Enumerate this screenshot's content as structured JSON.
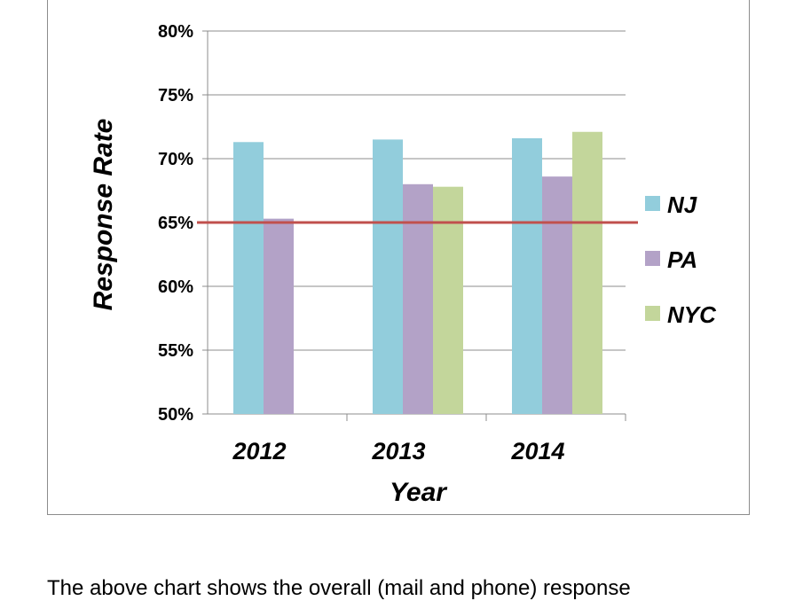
{
  "chart_data": {
    "type": "bar",
    "title": "",
    "xlabel": "Year",
    "ylabel": "Response Rate",
    "categories": [
      "2012",
      "2013",
      "2014"
    ],
    "series": [
      {
        "name": "NJ",
        "color": "#92cddc",
        "values": [
          71.3,
          71.5,
          71.6
        ]
      },
      {
        "name": "PA",
        "color": "#b3a2c7",
        "values": [
          65.3,
          68.0,
          68.6
        ]
      },
      {
        "name": "NYC",
        "color": "#c3d69b",
        "values": [
          null,
          67.8,
          72.1
        ]
      }
    ],
    "ylim": [
      50,
      80
    ],
    "yticks": [
      50,
      55,
      60,
      65,
      70,
      75,
      80
    ],
    "ytick_labels": [
      "50%",
      "55%",
      "60%",
      "65%",
      "70%",
      "75%",
      "80%"
    ],
    "reference_line": {
      "value": 65,
      "color": "#c0504d"
    },
    "gridlines": true,
    "legend_position": "right"
  },
  "caption": "The above chart shows the overall (mail and phone) response"
}
